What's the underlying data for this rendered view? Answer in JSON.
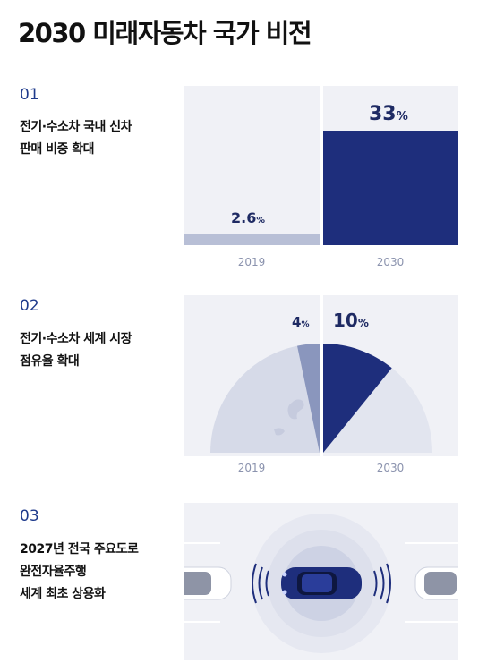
{
  "title": "2030 미래자동차 국가 비전",
  "colors": {
    "navy": "#1e2e7c",
    "light": "#b8bfd6",
    "panel": "#f0f1f6",
    "accent_text": "#1e3a8c"
  },
  "sections": [
    {
      "number": "01",
      "lines": [
        "전기·수소차 국내 신차",
        "판매 비중 확대"
      ],
      "chart": {
        "type": "bar",
        "years": [
          "2019",
          "2030"
        ],
        "values": [
          2.6,
          33
        ],
        "labels": [
          "2.6",
          "33"
        ],
        "unit": "%"
      }
    },
    {
      "number": "02",
      "lines": [
        "전기·수소차 세계 시장",
        "점유율 확대"
      ],
      "chart": {
        "type": "pie-quadrant",
        "years": [
          "2019",
          "2030"
        ],
        "values": [
          4,
          10
        ],
        "labels": [
          "4",
          "10"
        ],
        "unit": "%"
      }
    },
    {
      "number": "03",
      "lines": [
        "2027년 전국 주요도로",
        "완전자율주행",
        "세계 최초 상용화"
      ]
    }
  ]
}
